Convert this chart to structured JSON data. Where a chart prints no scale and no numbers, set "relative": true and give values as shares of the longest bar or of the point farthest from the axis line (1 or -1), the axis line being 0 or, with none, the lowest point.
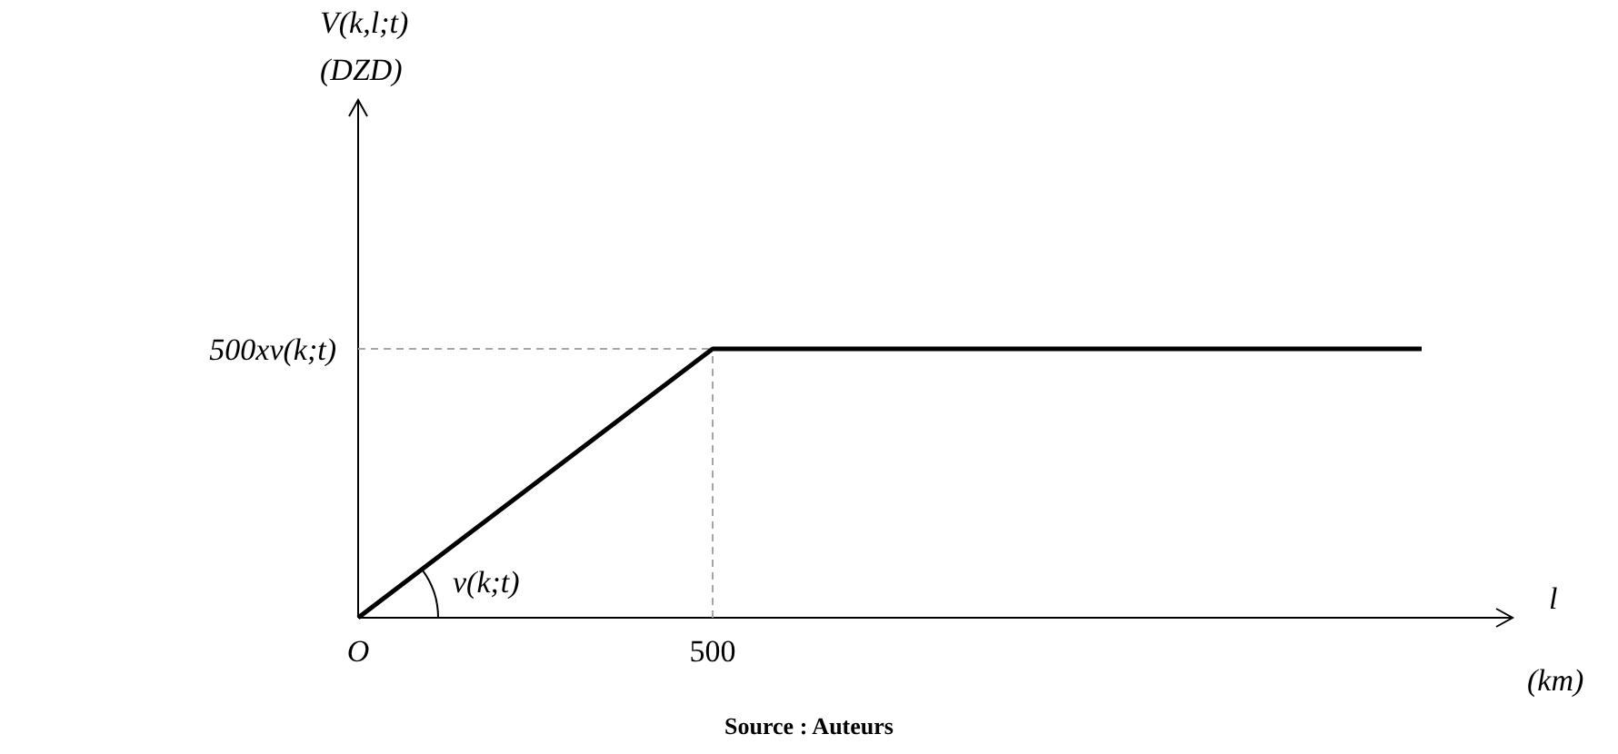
{
  "chart_data": {
    "type": "line",
    "relative": true,
    "xlabel": "l\n(km)",
    "categories": [
      "O",
      "500",
      null,
      null
    ],
    "series": [
      {
        "color": "#000000",
        "values": [
          0,
          1,
          1,
          1
        ]
      }
    ],
    "ref_lines": [
      {
        "axis": "y",
        "value": 1,
        "label": "500xv(k;t)",
        "color": "#a6a6a6",
        "line_style": "dashed"
      },
      {
        "axis": "x",
        "value": "500",
        "label": null,
        "color": "#a6a6a6",
        "line_style": "dashed"
      }
    ],
    "annotations": [
      "V(k,l;t)\n(DZD)",
      "v(k;t)",
      "Source : Auteurs"
    ],
    "marker": "none",
    "line_style": "solid"
  }
}
